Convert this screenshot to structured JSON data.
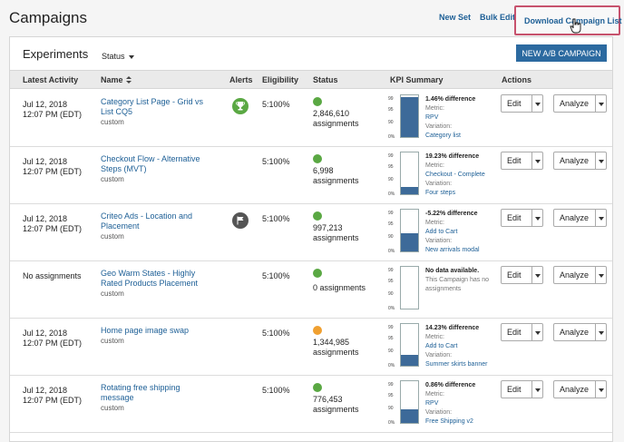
{
  "page": {
    "title": "Campaigns",
    "links": {
      "new_set": "New Set",
      "bulk_edit": "Bulk Edit",
      "download": "Download Campaign List"
    }
  },
  "experiments": {
    "title": "Experiments",
    "status_filter": "Status",
    "new_button": "NEW  A/B CAMPAIGN",
    "columns": {
      "activity": "Latest Activity",
      "name": "Name",
      "alerts": "Alerts",
      "eligibility": "Eligibility",
      "status": "Status",
      "kpi": "KPI Summary",
      "actions": "Actions"
    },
    "kpi_axis": [
      "99",
      "95",
      "90",
      "0%"
    ],
    "action_labels": {
      "edit": "Edit",
      "analyze": "Analyze"
    },
    "kpi_labels": {
      "metric": "Metric:",
      "variation": "Variation:"
    },
    "rows": [
      {
        "date": "Jul 12, 2018",
        "time": "12:07 PM (EDT)",
        "name": "Category List Page - Grid vs List CQ5",
        "type": "custom",
        "alert": "trophy-icon",
        "alert_color": "#5aa843",
        "eligibility": "5:100%",
        "status_color": "#5aa843",
        "assignments": "2,846,610",
        "assign_label": "assignments",
        "kpi_fill": 0.96,
        "diff": "1.46% difference",
        "metric": "RPV",
        "variation": "Category list"
      },
      {
        "date": "Jul 12, 2018",
        "time": "12:07 PM (EDT)",
        "name": "Checkout Flow - Alternative Steps (MVT)",
        "type": "custom",
        "alert": "",
        "alert_color": "",
        "eligibility": "5:100%",
        "status_color": "#5aa843",
        "assignments": "6,998",
        "assign_label": "assignments",
        "kpi_fill": 0.17,
        "diff": "19.23% difference",
        "metric": "Checkout - Complete",
        "variation": "Four steps"
      },
      {
        "date": "Jul 12, 2018",
        "time": "12:07 PM (EDT)",
        "name": "Criteo Ads - Location and Placement",
        "type": "custom",
        "alert": "flag-icon",
        "alert_color": "#555555",
        "eligibility": "5:100%",
        "status_color": "#5aa843",
        "assignments": "997,213",
        "assign_label": "assignments",
        "kpi_fill": 0.44,
        "diff": "-5.22% difference",
        "metric": "Add to Cart",
        "variation": "New arrivals modal"
      },
      {
        "date": "",
        "time": "",
        "no_assign": "No assignments",
        "name": "Geo Warm States - Highly Rated Products Placement",
        "type": "custom",
        "alert": "",
        "alert_color": "",
        "eligibility": "5:100%",
        "status_color": "#5aa843",
        "assignments": "0 assignments",
        "assign_label": "",
        "kpi_fill": 0,
        "diff": "No data available.",
        "na_text": "This Campaign has no assignments",
        "metric": "",
        "variation": ""
      },
      {
        "date": "Jul 12, 2018",
        "time": "12:07 PM (EDT)",
        "name": "Home page image swap",
        "type": "custom",
        "alert": "",
        "alert_color": "",
        "eligibility": "5:100%",
        "status_color": "#f0a030",
        "assignments": "1,344,985",
        "assign_label": "assignments",
        "kpi_fill": 0.27,
        "diff": "14.23% difference",
        "metric": "Add to Cart",
        "variation": "Summer skirts banner"
      },
      {
        "date": "Jul 12, 2018",
        "time": "12:07 PM (EDT)",
        "name": "Rotating free shipping message",
        "type": "custom",
        "alert": "",
        "alert_color": "",
        "eligibility": "5:100%",
        "status_color": "#5aa843",
        "assignments": "776,453",
        "assign_label": "assignments",
        "kpi_fill": 0.32,
        "diff": "0.86% difference",
        "metric": "RPV",
        "variation": "Free Shipping v2"
      }
    ]
  }
}
